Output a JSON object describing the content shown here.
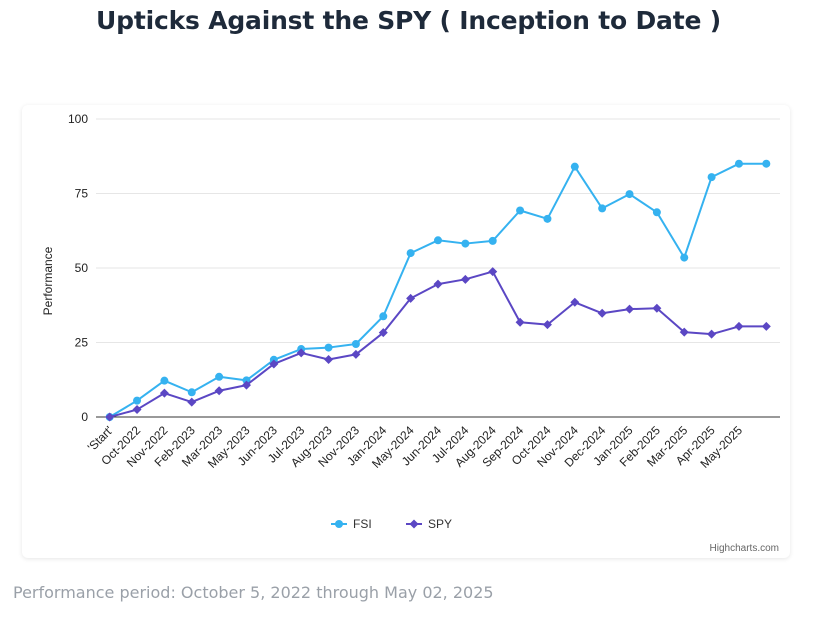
{
  "page": {
    "title": "Upticks Against the SPY ( Inception to Date )",
    "footer": "Performance period: October 5, 2022 through May 02, 2025",
    "credits": "Highcharts.com"
  },
  "chart_data": {
    "type": "line",
    "title": "Upticks Against the SPY ( Inception to Date )",
    "xlabel": "",
    "ylabel": "Performance",
    "ylim": [
      0,
      100
    ],
    "yticks": [
      0,
      25,
      50,
      75,
      100
    ],
    "grid": true,
    "legend_position": "bottom-center",
    "x": [
      "'Start'",
      "Oct-2022",
      "Nov-2022",
      "Feb-2023",
      "Mar-2023",
      "May-2023",
      "Jun-2023",
      "Jul-2023",
      "Aug-2023",
      "Nov-2023",
      "Jan-2024",
      "May-2024",
      "Jun-2024",
      "Jul-2024",
      "Aug-2024",
      "Sep-2024",
      "Oct-2024",
      "Nov-2024",
      "Dec-2024",
      "Jan-2025",
      "Feb-2025",
      "Mar-2025",
      "Apr-2025",
      "May-2025",
      ""
    ],
    "series": [
      {
        "name": "FSI",
        "color": "#35b2f0",
        "marker": "circle",
        "values": [
          0,
          5.5,
          12.2,
          8.3,
          13.5,
          12.3,
          19.2,
          22.8,
          23.3,
          24.5,
          33.8,
          55,
          59.3,
          58.2,
          59.1,
          69.3,
          66.5,
          84,
          70,
          74.8,
          68.7,
          53.5,
          80.5,
          85,
          85
        ]
      },
      {
        "name": "SPY",
        "color": "#5b47c4",
        "marker": "diamond",
        "values": [
          0,
          2.5,
          8,
          5,
          8.8,
          10.7,
          17.8,
          21.5,
          19.3,
          21,
          28.3,
          39.8,
          44.6,
          46.2,
          48.8,
          31.8,
          31,
          38.5,
          34.8,
          36.2,
          36.5,
          28.5,
          27.8,
          30.4,
          30.4
        ]
      }
    ]
  }
}
